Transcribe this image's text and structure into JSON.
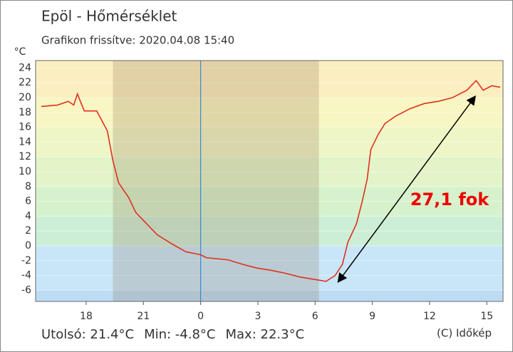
{
  "chart_data": {
    "type": "line",
    "title": "Epöl - Hőmérséklet",
    "subtitle": "Grafikon frissítve: 2020.04.08 15:40",
    "y_label": "°C",
    "footer": [
      "Utolsó: 21.4°C",
      "Min: -4.8°C",
      "Max: 22.3°C"
    ],
    "credit": "(C) Időkép",
    "annotation": {
      "text": "27,1 fok",
      "color": "#ee0000",
      "from": [
        7.2,
        -4.9
      ],
      "to": [
        14.4,
        20.2
      ]
    },
    "xlim": [
      -8.65,
      15.85
    ],
    "xticks": [
      {
        "value": -6,
        "label": "18"
      },
      {
        "value": -3,
        "label": "21"
      },
      0,
      3,
      6,
      9,
      12,
      15
    ],
    "ylim": [
      -7.5,
      25
    ],
    "yticks": [
      -6,
      -4,
      -2,
      0,
      2,
      4,
      6,
      8,
      10,
      12,
      14,
      16,
      18,
      20,
      22,
      24
    ],
    "bands": [
      {
        "from": 20,
        "to": 25,
        "color": "#fbeec0"
      },
      {
        "from": 16,
        "to": 20,
        "color": "#f8f6c2"
      },
      {
        "from": 12,
        "to": 16,
        "color": "#eef6c6"
      },
      {
        "from": 8,
        "to": 12,
        "color": "#e2f4c8"
      },
      {
        "from": 4,
        "to": 8,
        "color": "#d6f2cc"
      },
      {
        "from": 0,
        "to": 4,
        "color": "#cdeed6"
      },
      {
        "from": -6,
        "to": 0,
        "color": "#c8e6f8"
      },
      {
        "from": -7.5,
        "to": -6,
        "color": "#bcdcf4"
      }
    ],
    "night": [
      -4.6,
      6.2
    ],
    "midnight": 0,
    "series": [
      {
        "name": "Hőmérséklet",
        "color": "#e03020",
        "x": [
          -8.35,
          -7.5,
          -6.94,
          -6.65,
          -6.46,
          -6.1,
          -5.45,
          -5.26,
          -4.89,
          -4.6,
          -4.3,
          -3.77,
          -3.4,
          -2.84,
          -2.28,
          -1.53,
          -0.78,
          0,
          0.3,
          1.46,
          2.2,
          2.95,
          3.69,
          4.44,
          5.19,
          6.12,
          6.57,
          7.05,
          7.43,
          7.72,
          8.17,
          8.47,
          8.73,
          8.92,
          9.3,
          9.66,
          10.22,
          10.97,
          11.72,
          12.46,
          13.2,
          13.96,
          14.44,
          14.81,
          15.26,
          15.7
        ],
        "values": [
          18.8,
          19.0,
          19.5,
          19.0,
          20.5,
          18.2,
          18.2,
          17.3,
          15.5,
          11.5,
          8.5,
          6.5,
          4.5,
          3.0,
          1.5,
          0.3,
          -0.8,
          -1.2,
          -1.6,
          -1.9,
          -2.5,
          -3.0,
          -3.3,
          -3.7,
          -4.2,
          -4.6,
          -4.8,
          -4.0,
          -2.5,
          0.5,
          3.0,
          6.0,
          9.0,
          13.0,
          15.0,
          16.5,
          17.5,
          18.5,
          19.2,
          19.5,
          20.0,
          21.0,
          22.3,
          21.0,
          21.6,
          21.4
        ]
      }
    ]
  }
}
